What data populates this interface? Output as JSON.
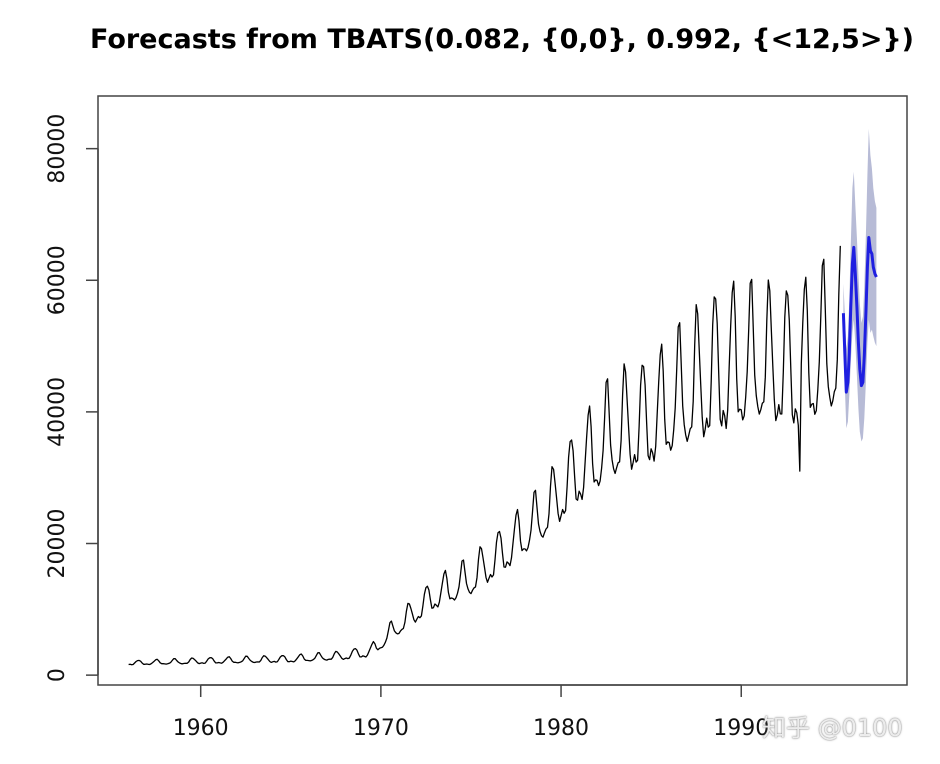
{
  "chart_data": {
    "type": "line",
    "title": "Forecasts from TBATS(0.082, {0,0}, 0.992, {<12,5>})",
    "xlabel": "",
    "ylabel": "",
    "xlim": [
      1954.3,
      1999.2
    ],
    "ylim": [
      -1500,
      88000
    ],
    "x_ticks": [
      1960,
      1970,
      1980,
      1990
    ],
    "y_ticks": [
      0,
      20000,
      40000,
      60000,
      80000
    ],
    "grid": false,
    "legend": "none",
    "colors": {
      "history": "#000000",
      "forecast": "#1f1fe0",
      "interval": "#b7bbd6",
      "frame": "#444444"
    },
    "history": {
      "start": 1956.0,
      "freq": 12,
      "anchors": [
        [
          1956.0,
          1800,
          300
        ],
        [
          1960.0,
          2100,
          420
        ],
        [
          1965.0,
          2400,
          500
        ],
        [
          1968.0,
          2900,
          600
        ],
        [
          1969.5,
          3600,
          900
        ],
        [
          1971.0,
          7500,
          1500
        ],
        [
          1973.0,
          12000,
          2200
        ],
        [
          1975.0,
          14500,
          2700
        ],
        [
          1977.0,
          19000,
          3300
        ],
        [
          1979.0,
          24000,
          3900
        ],
        [
          1981.0,
          31000,
          5600
        ],
        [
          1983.0,
          36500,
          7500
        ],
        [
          1985.0,
          38500,
          7500
        ],
        [
          1987.0,
          42500,
          9000
        ],
        [
          1989.0,
          46000,
          10500
        ],
        [
          1991.0,
          47000,
          9500
        ],
        [
          1993.0,
          46000,
          10000
        ],
        [
          1995.5,
          50000,
          11000
        ]
      ],
      "dips": [
        [
          1993.25,
          31000
        ]
      ]
    },
    "forecast": {
      "x": [
        1995.67,
        1995.75,
        1995.83,
        1995.92,
        1996.0,
        1996.08,
        1996.17,
        1996.25,
        1996.33,
        1996.42,
        1996.5,
        1996.58,
        1996.67,
        1996.75,
        1996.83,
        1996.92,
        1997.0,
        1997.08,
        1997.17,
        1997.25,
        1997.33,
        1997.42,
        1997.5
      ],
      "mean": [
        55000,
        49000,
        43000,
        44500,
        49000,
        56000,
        62500,
        65000,
        61000,
        56000,
        50500,
        46500,
        44000,
        44500,
        48500,
        55000,
        62000,
        66500,
        64500,
        64000,
        62000,
        61000,
        60500
      ],
      "lower": [
        51000,
        44000,
        37500,
        38500,
        42500,
        47500,
        52000,
        54000,
        50500,
        45500,
        40500,
        37000,
        35500,
        36000,
        39000,
        44500,
        50500,
        54000,
        52000,
        52500,
        51500,
        50500,
        50000
      ],
      "upper": [
        59500,
        55000,
        49500,
        51500,
        57000,
        65500,
        74000,
        76500,
        71500,
        66500,
        61000,
        56500,
        53500,
        54500,
        59000,
        67000,
        76000,
        83000,
        79000,
        77000,
        74000,
        72000,
        71000
      ]
    }
  },
  "watermark": "知乎 @0100"
}
